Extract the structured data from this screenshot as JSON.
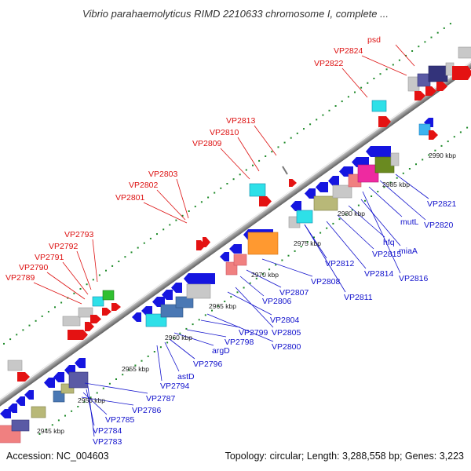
{
  "title": "Vibrio parahaemolyticus RIMD 2210633 chromosome I, complete ...",
  "footer": {
    "accession": "Accession: NC_004603",
    "summary": "Topology: circular; Length: 3,288,558 bp; Genes: 3,223"
  },
  "colors": {
    "label_upper": "#dd1111",
    "label_lower": "#1111cc",
    "forward_arrow": "#e41212",
    "reverse_arrow": "#1515e0",
    "gc_dots": "#1f8a2a"
  },
  "scale_ticks": [
    "2945 kbp",
    "2950 kbp",
    "2955 kbp",
    "2960 kbp",
    "2965 kbp",
    "2970 kbp",
    "2975 kbp",
    "2980 kbp",
    "2985 kbp",
    "2990 kbp"
  ],
  "labels_upper": [
    "VP2789",
    "VP2790",
    "VP2791",
    "VP2792",
    "VP2793",
    "VP2801",
    "VP2802",
    "VP2803",
    "VP2809",
    "VP2810",
    "VP2813",
    "VP2822",
    "VP2824",
    "psd"
  ],
  "labels_lower": [
    "VP2783",
    "VP2784",
    "VP2785",
    "VP2786",
    "VP2787",
    "VP2794",
    "astD",
    "VP2796",
    "argD",
    "VP2798",
    "VP2799",
    "VP2800",
    "VP2804",
    "VP2805",
    "VP2806",
    "VP2807",
    "VP2808",
    "VP2811",
    "VP2812",
    "VP2814",
    "VP2815",
    "hfq",
    "miaA",
    "VP2816",
    "mutL",
    "VP2820",
    "VP2821"
  ]
}
